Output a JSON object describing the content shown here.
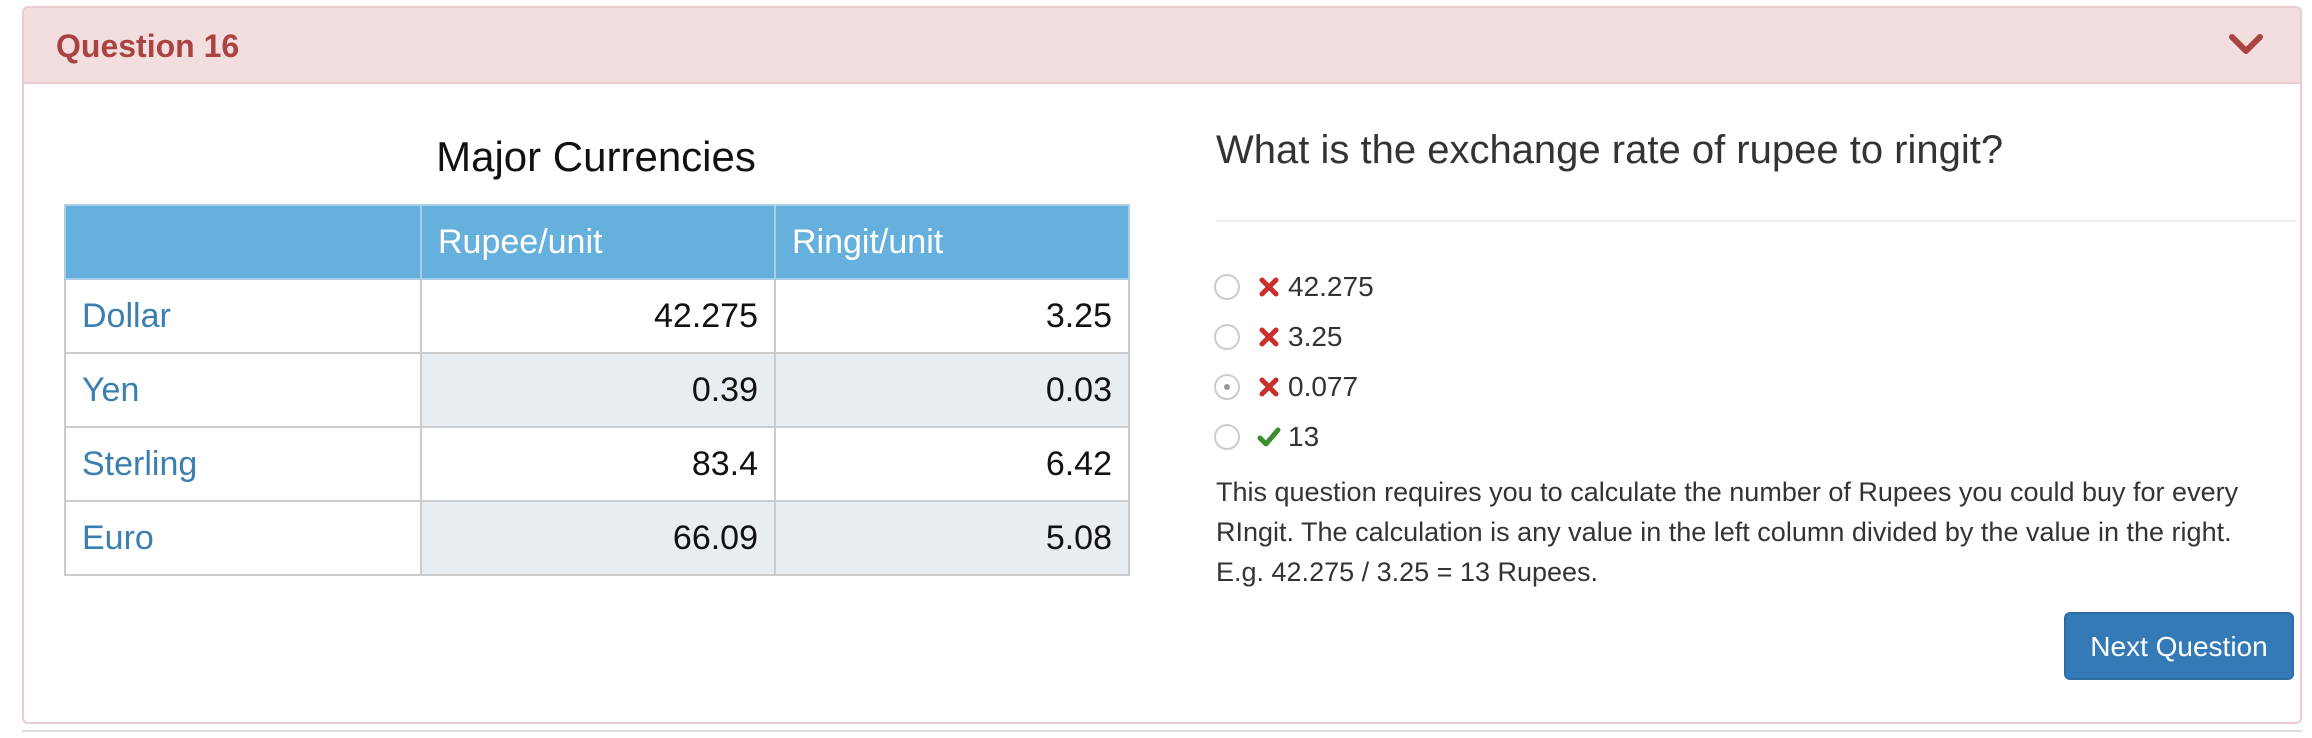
{
  "panel": {
    "title": "Question 16"
  },
  "table": {
    "title": "Major Currencies",
    "headers": [
      "",
      "Rupee/unit",
      "Ringit/unit"
    ],
    "rows": [
      {
        "name": "Dollar",
        "rupee": "42.275",
        "ringit": "3.25"
      },
      {
        "name": "Yen",
        "rupee": "0.39",
        "ringit": "0.03"
      },
      {
        "name": "Sterling",
        "rupee": "83.4",
        "ringit": "6.42"
      },
      {
        "name": "Euro",
        "rupee": "66.09",
        "ringit": "5.08"
      }
    ]
  },
  "question": {
    "text": "What is the exchange rate of rupee to ringit?",
    "options": [
      {
        "label": "42.275",
        "result": "incorrect",
        "selected": false
      },
      {
        "label": "3.25",
        "result": "incorrect",
        "selected": false
      },
      {
        "label": "0.077",
        "result": "incorrect",
        "selected": true
      },
      {
        "label": "13",
        "result": "correct",
        "selected": false
      }
    ],
    "explanation_lines": [
      "This question requires you to calculate the number of Rupees you could buy for every",
      "RIngit. The calculation is any value in the left column divided by the value in the right.",
      "E.g. 42.275 / 3.25 = 13 Rupees."
    ]
  },
  "buttons": {
    "next_label": "Next Question"
  },
  "colors": {
    "heading_bg": "#f2dede",
    "heading_text": "#a94442",
    "table_header_bg": "#66b0de",
    "currency_name": "#3a7fb0",
    "incorrect_mark": "#c9302c",
    "correct_mark": "#3c8d2f",
    "primary_button": "#337ab7"
  },
  "icons": {
    "collapse": "chevron-down-icon",
    "incorrect": "cross-icon",
    "correct": "check-icon"
  }
}
